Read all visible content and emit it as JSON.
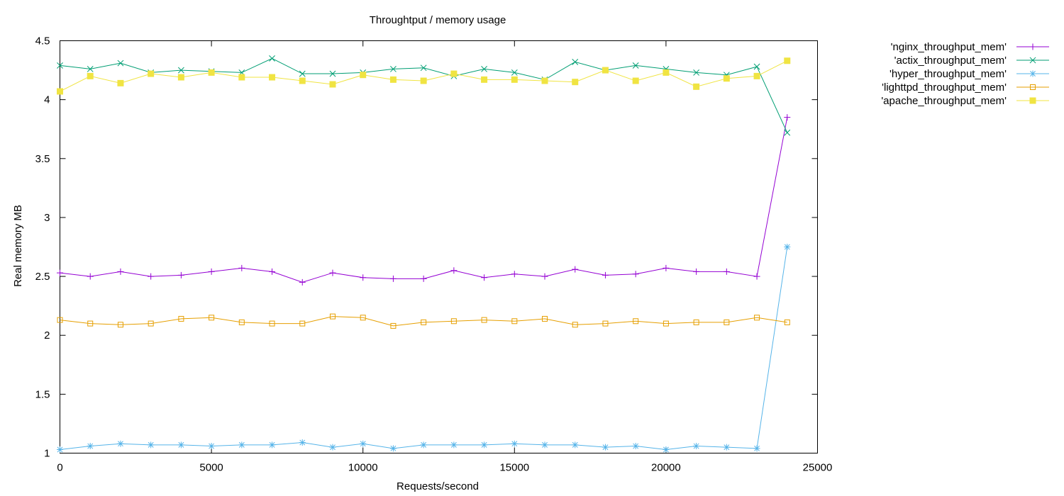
{
  "chart_data": {
    "type": "line",
    "title": "Throughtput / memory usage",
    "xlabel": "Requests/second",
    "ylabel": "Real memory MB",
    "xlim": [
      0,
      25000
    ],
    "ylim": [
      1,
      4.5
    ],
    "xticks": [
      0,
      5000,
      10000,
      15000,
      20000,
      25000
    ],
    "yticks": [
      1,
      1.5,
      2,
      2.5,
      3,
      3.5,
      4,
      4.5
    ],
    "grid": false,
    "legend_position": "outside-top-right",
    "x": [
      0,
      1000,
      2000,
      3000,
      4000,
      5000,
      6000,
      7000,
      8000,
      9000,
      10000,
      11000,
      12000,
      13000,
      14000,
      15000,
      16000,
      17000,
      18000,
      19000,
      20000,
      21000,
      22000,
      23000,
      24000
    ],
    "series": [
      {
        "name": "'nginx_throughput_mem'",
        "color": "#9400d3",
        "marker": "plus",
        "values": [
          2.53,
          2.5,
          2.54,
          2.5,
          2.51,
          2.54,
          2.57,
          2.54,
          2.45,
          2.53,
          2.49,
          2.48,
          2.48,
          2.55,
          2.49,
          2.52,
          2.5,
          2.56,
          2.51,
          2.52,
          2.57,
          2.54,
          2.54,
          2.5,
          3.85
        ]
      },
      {
        "name": "'actix_throughput_mem'",
        "color": "#009e73",
        "marker": "cross",
        "values": [
          4.29,
          4.26,
          4.31,
          4.23,
          4.25,
          4.24,
          4.23,
          4.35,
          4.22,
          4.22,
          4.23,
          4.26,
          4.27,
          4.2,
          4.26,
          4.23,
          4.17,
          4.32,
          4.25,
          4.29,
          4.26,
          4.23,
          4.21,
          4.28,
          3.72
        ]
      },
      {
        "name": "'hyper_throughput_mem'",
        "color": "#56b4e9",
        "marker": "star",
        "values": [
          1.03,
          1.06,
          1.08,
          1.07,
          1.07,
          1.06,
          1.07,
          1.07,
          1.09,
          1.05,
          1.08,
          1.04,
          1.07,
          1.07,
          1.07,
          1.08,
          1.07,
          1.07,
          1.05,
          1.06,
          1.03,
          1.06,
          1.05,
          1.04,
          2.75
        ]
      },
      {
        "name": "'lighttpd_throughput_mem'",
        "color": "#e69f00",
        "marker": "square-open",
        "values": [
          2.13,
          2.1,
          2.09,
          2.1,
          2.14,
          2.15,
          2.11,
          2.1,
          2.1,
          2.16,
          2.15,
          2.08,
          2.11,
          2.12,
          2.13,
          2.12,
          2.14,
          2.09,
          2.1,
          2.12,
          2.1,
          2.11,
          2.11,
          2.15,
          2.11
        ]
      },
      {
        "name": "'apache_throughput_mem'",
        "color": "#f0e442",
        "marker": "square-filled",
        "values": [
          4.07,
          4.2,
          4.14,
          4.22,
          4.19,
          4.23,
          4.19,
          4.19,
          4.16,
          4.13,
          4.21,
          4.17,
          4.16,
          4.22,
          4.17,
          4.17,
          4.16,
          4.15,
          4.25,
          4.16,
          4.23,
          4.11,
          4.18,
          4.2,
          4.33
        ]
      }
    ]
  }
}
